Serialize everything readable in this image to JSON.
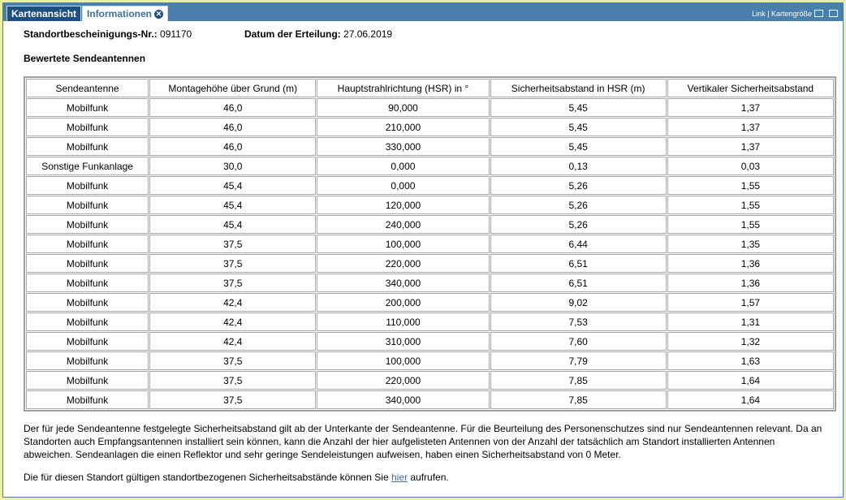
{
  "tabs": [
    "Kartenansicht",
    "Informationen"
  ],
  "toplinks": "Link | Kartengröße",
  "info": {
    "cert_label": "Standortbescheinigungs-Nr.:",
    "cert_value": "091170",
    "date_label": "Datum der Erteilung:",
    "date_value": "27.06.2019"
  },
  "heading": "Bewertete Sendeantennen",
  "table": {
    "columns": [
      "Sendeantenne",
      "Montagehöhe über Grund (m)",
      "Hauptstrahlrichtung (HSR) in °",
      "Sicherheitsabstand in HSR (m)",
      "Vertikaler Sicherheitsabstand"
    ],
    "rows": [
      [
        "Mobilfunk",
        "46,0",
        "90,000",
        "5,45",
        "1,37"
      ],
      [
        "Mobilfunk",
        "46,0",
        "210,000",
        "5,45",
        "1,37"
      ],
      [
        "Mobilfunk",
        "46,0",
        "330,000",
        "5,45",
        "1,37"
      ],
      [
        "Sonstige Funkanlage",
        "30,0",
        "0,000",
        "0,13",
        "0,03"
      ],
      [
        "Mobilfunk",
        "45,4",
        "0,000",
        "5,26",
        "1,55"
      ],
      [
        "Mobilfunk",
        "45,4",
        "120,000",
        "5,26",
        "1,55"
      ],
      [
        "Mobilfunk",
        "45,4",
        "240,000",
        "5,26",
        "1,55"
      ],
      [
        "Mobilfunk",
        "37,5",
        "100,000",
        "6,44",
        "1,35"
      ],
      [
        "Mobilfunk",
        "37,5",
        "220,000",
        "6,51",
        "1,36"
      ],
      [
        "Mobilfunk",
        "37,5",
        "340,000",
        "6,51",
        "1,36"
      ],
      [
        "Mobilfunk",
        "42,4",
        "200,000",
        "9,02",
        "1,57"
      ],
      [
        "Mobilfunk",
        "42,4",
        "110,000",
        "7,53",
        "1,31"
      ],
      [
        "Mobilfunk",
        "42,4",
        "310,000",
        "7,60",
        "1,32"
      ],
      [
        "Mobilfunk",
        "37,5",
        "100,000",
        "7,79",
        "1,63"
      ],
      [
        "Mobilfunk",
        "37,5",
        "220,000",
        "7,85",
        "1,64"
      ],
      [
        "Mobilfunk",
        "37,5",
        "340,000",
        "7,85",
        "1,64"
      ]
    ]
  },
  "note": "Der für jede Sendeantenne festgelegte Sicherheitsabstand gilt ab der Unterkante der Sendeantenne. Für die Beurteilung des Personenschutzes sind nur Sendeantennen relevant. Da an Standorten auch Empfangsantennen installiert sein können, kann die Anzahl der hier aufgelisteten Antennen von der Anzahl der tatsächlich am Standort installierten Antennen abweichen. Sendeanlagen die einen Reflektor und sehr geringe Sendeleistungen aufweisen, haben einen Sicherheitsabstand von 0 Meter.",
  "note2": {
    "before": "Die für diesen Standort gültigen standortbezogenen Sicherheitsabstände können Sie",
    "link": "hier",
    "after": "aufrufen."
  }
}
